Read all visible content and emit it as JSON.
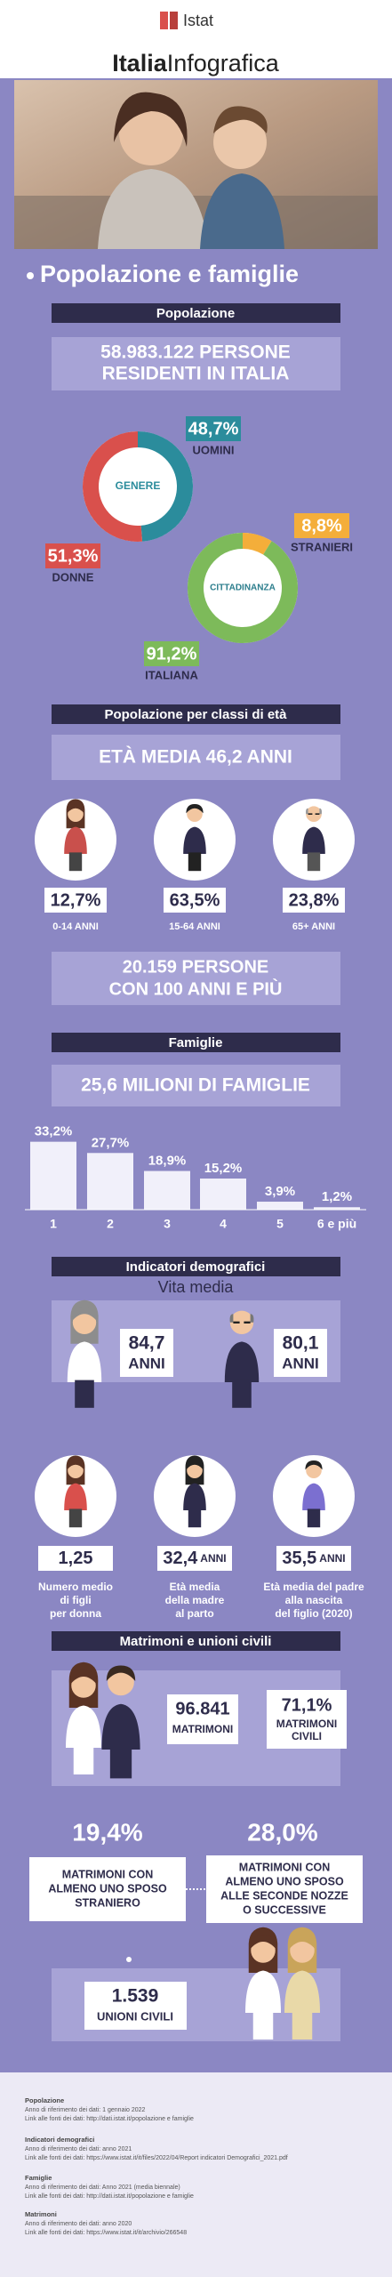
{
  "header": {
    "brand": "Istat",
    "title_a": "Italia",
    "title_b": "Infografica"
  },
  "section_title": "Popolazione e famiglie",
  "popolazione": {
    "heading": "Popolazione",
    "residents": [
      "58.983.122 PERSONE",
      "RESIDENTI IN ITALIA"
    ],
    "genere": {
      "label": "GENERE",
      "segments": [
        {
          "name": "UOMINI",
          "value": 48.7,
          "label": "48,7%",
          "color": "#2b8c9c"
        },
        {
          "name": "DONNE",
          "value": 51.3,
          "label": "51,3%",
          "color": "#d9504c"
        }
      ]
    },
    "cittadinanza": {
      "label": "CITTADINANZA",
      "segments": [
        {
          "name": "STRANIERI",
          "value": 8.8,
          "label": "8,8%",
          "color": "#f4ae3a"
        },
        {
          "name": "ITALIANA",
          "value": 91.2,
          "label": "91,2%",
          "color": "#7dba5a"
        }
      ]
    }
  },
  "eta": {
    "heading": "Popolazione per classi di età",
    "media": "ETÀ MEDIA 46,2 ANNI",
    "classes": [
      {
        "value": 12.7,
        "label": "12,7%",
        "name": "0-14 ANNI"
      },
      {
        "value": 63.5,
        "label": "63,5%",
        "name": "15-64 ANNI"
      },
      {
        "value": 23.8,
        "label": "23,8%",
        "name": "65+ ANNI"
      }
    ],
    "centenarians": [
      "20.159 PERSONE",
      "CON 100 ANNI E PIÙ"
    ]
  },
  "famiglie": {
    "heading": "Famiglie",
    "total": "25,6 MILIONI DI FAMIGLIE",
    "chart": {
      "type": "bar",
      "categories": [
        "1",
        "2",
        "3",
        "4",
        "5",
        "6 e più"
      ],
      "values": [
        33.2,
        27.7,
        18.9,
        15.2,
        3.9,
        1.2
      ],
      "value_labels": [
        "33,2%",
        "27,7%",
        "18,9%",
        "15,2%",
        "3,9%",
        "1,2%"
      ],
      "color": "#f1f0fa"
    }
  },
  "indicatori": {
    "heading": "Indicatori demografici",
    "vita_media": {
      "title": "Vita media",
      "donne": {
        "number": "84,7",
        "unit": "ANNI"
      },
      "uomini": {
        "number": "80,1",
        "unit": "ANNI"
      }
    },
    "items": [
      {
        "number": "1,25",
        "lines": [
          "Numero medio",
          "di figli",
          "per donna"
        ]
      },
      {
        "number": "32,4",
        "unit": "ANNI",
        "lines": [
          "Età media",
          "della madre",
          "al parto"
        ]
      },
      {
        "number": "35,5",
        "unit": "ANNI",
        "lines": [
          "Età media del padre",
          "alla nascita",
          "del figlio (2020)"
        ]
      }
    ]
  },
  "matrimoni": {
    "heading": "Matrimoni e unioni civili",
    "totale": {
      "number": "96.841",
      "unit": "MATRIMONI"
    },
    "civili": {
      "number": "71,1%",
      "lines": [
        "MATRIMONI",
        "CIVILI"
      ]
    },
    "straniero": {
      "number": "19,4%",
      "lines": [
        "MATRIMONI CON",
        "ALMENO UNO SPOSO",
        "STRANIERO"
      ]
    },
    "seconde": {
      "number": "28,0%",
      "lines": [
        "MATRIMONI CON",
        "ALMENO UNO SPOSO",
        "ALLE SECONDE NOZZE",
        "O SUCCESSIVE"
      ]
    },
    "unioni": {
      "number": "1.539",
      "unit": "UNIONI CIVILI"
    }
  },
  "footer": {
    "sources": [
      {
        "title": "Popolazione",
        "lines": [
          "Anno di riferimento dei dati: 1 gennaio 2022",
          "Link alle fonti dei dati: http://dati.istat.it/popolazione e famiglie"
        ]
      },
      {
        "title": "Indicatori demografici",
        "lines": [
          "Anno di riferimento dei dati: anno 2021",
          "Link alle fonti dei dati: https://www.istat.it/it/files/2022/04/Report indicatori Demografici_2021.pdf"
        ]
      },
      {
        "title": "Famiglie",
        "lines": [
          "Anno di riferimento dei dati: Anno 2021 (media biennale)",
          "Link alle fonti dei dati: http://dati.istat.it/popolazione e famiglie"
        ]
      },
      {
        "title": "Matrimoni",
        "lines": [
          "Anno di riferimento dei dati: anno 2020",
          "Link alle fonti dei dati: https://www.istat.it/it/archivio/266548"
        ]
      }
    ]
  }
}
